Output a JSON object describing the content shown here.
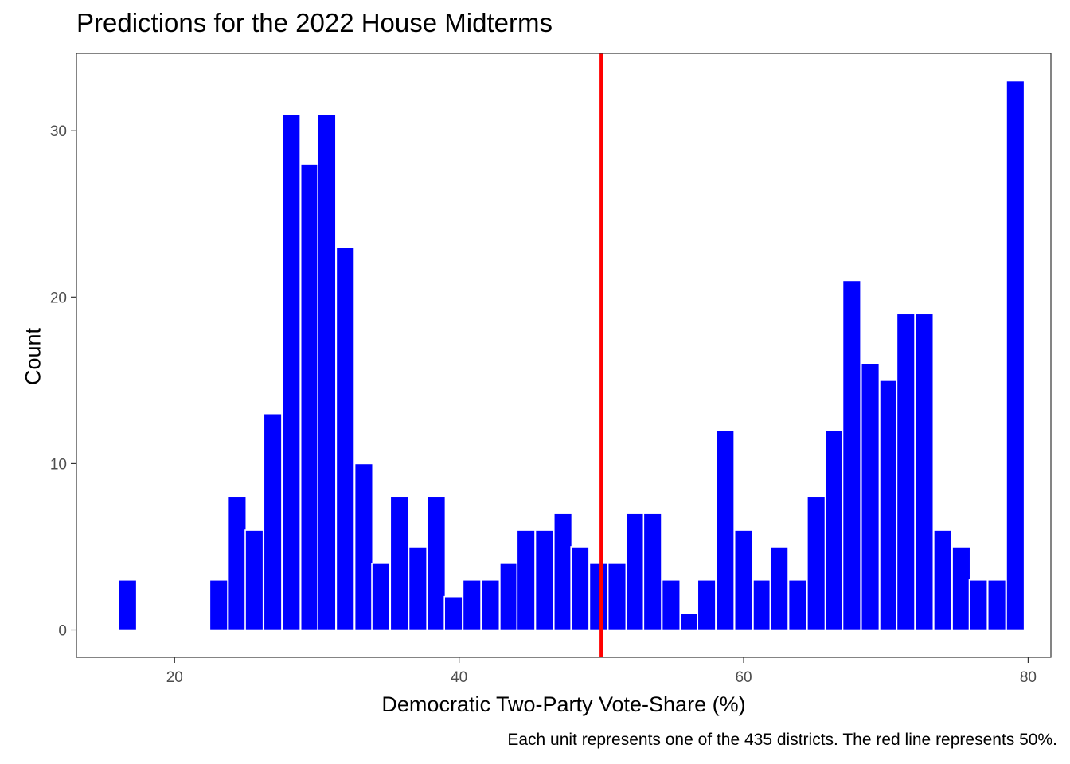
{
  "chart_data": {
    "type": "bar",
    "title": "Predictions for the 2022 House Midterms",
    "xlabel": "Democratic Two-Party Vote-Share (%)",
    "ylabel": "Count",
    "caption": "Each unit represents one of the 435 districts. The red line represents 50%.",
    "xlim": [
      13.1,
      81.6
    ],
    "ylim": [
      -1.65,
      34.65
    ],
    "x_ticks": [
      "20",
      "40",
      "60",
      "80"
    ],
    "y_ticks": [
      "0",
      "10",
      "20",
      "30"
    ],
    "grid": false,
    "bin_width": 1.27,
    "bar_color": "#0000ff",
    "reference_line": {
      "x": 50,
      "color": "#ff0000"
    },
    "x": [
      16.7,
      23.1,
      24.4,
      25.6,
      26.9,
      28.2,
      29.5,
      30.7,
      32.0,
      33.3,
      34.5,
      35.8,
      37.1,
      38.4,
      39.6,
      40.9,
      42.2,
      43.5,
      44.7,
      46.0,
      47.3,
      48.5,
      49.8,
      51.1,
      52.4,
      53.6,
      54.9,
      56.2,
      57.4,
      58.7,
      60.0,
      61.3,
      62.5,
      63.8,
      65.1,
      66.4,
      67.6,
      68.9,
      70.2,
      71.4,
      72.7,
      74.0,
      75.3,
      76.5,
      77.8,
      79.1
    ],
    "values": [
      3,
      3,
      8,
      6,
      13,
      31,
      28,
      31,
      23,
      10,
      4,
      8,
      5,
      8,
      2,
      3,
      3,
      4,
      6,
      6,
      7,
      5,
      4,
      4,
      7,
      7,
      3,
      1,
      3,
      12,
      6,
      3,
      5,
      3,
      8,
      12,
      21,
      16,
      15,
      19,
      19,
      6,
      5,
      3,
      3,
      33
    ]
  }
}
